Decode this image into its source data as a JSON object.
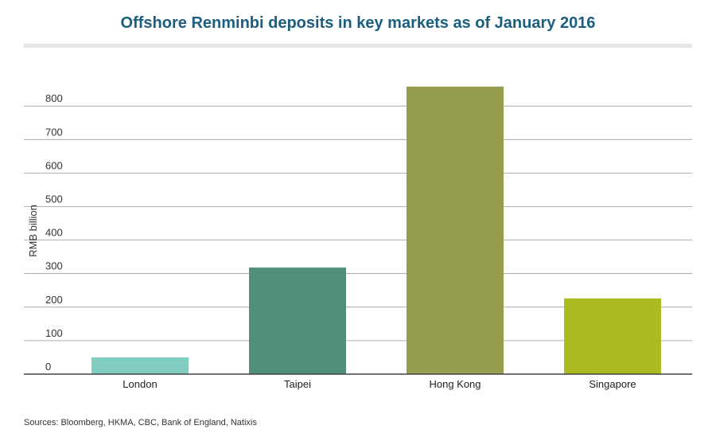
{
  "chart_data": {
    "type": "bar",
    "title": "Offshore Renminbi deposits in key markets as of January 2016",
    "xlabel": "",
    "ylabel": "RMB billion",
    "categories": [
      "London",
      "Taipei",
      "Hong Kong",
      "Singapore"
    ],
    "values": [
      50,
      318,
      858,
      226
    ],
    "yticks": [
      "0",
      "100",
      "200",
      "300",
      "400",
      "500",
      "600",
      "700",
      "800"
    ],
    "ylim": [
      0,
      900
    ],
    "grid": true,
    "colors": [
      "#82cdc1",
      "#4f8f7b",
      "#969e4e",
      "#adbb22"
    ]
  },
  "source": "Sources:  Bloomberg, HKMA, CBC, Bank of England, Natixis"
}
